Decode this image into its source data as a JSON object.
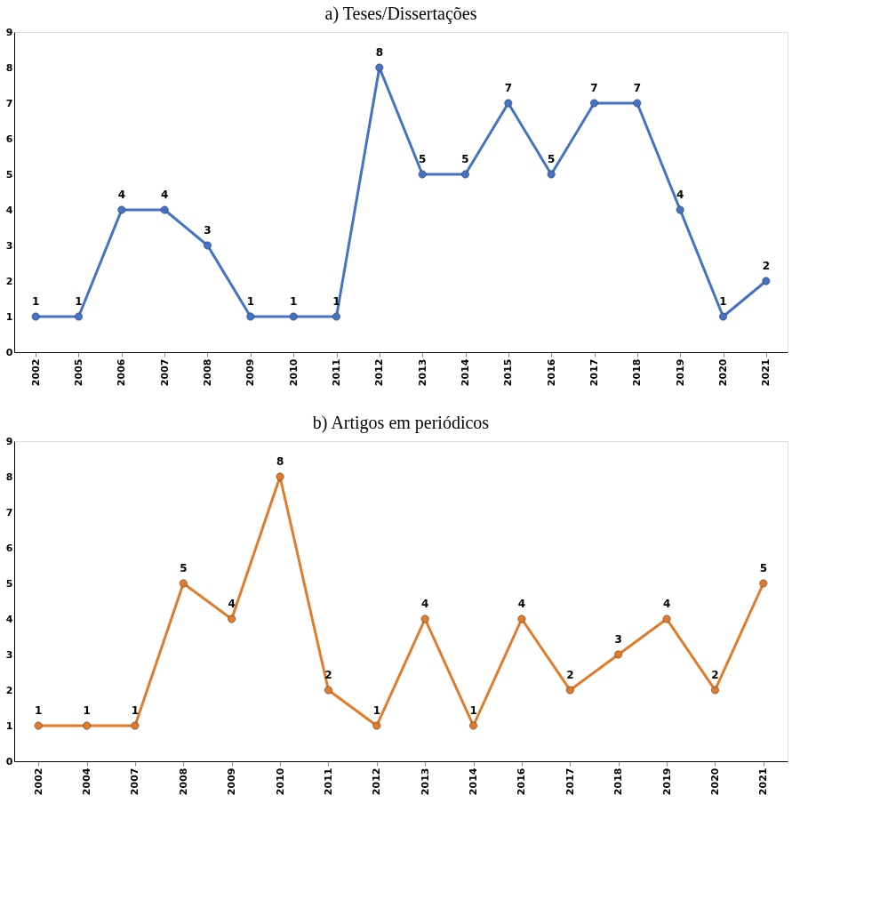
{
  "chart_data": [
    {
      "type": "line",
      "title": "a)   Teses/Dissertações",
      "categories": [
        "2002",
        "2005",
        "2006",
        "2007",
        "2008",
        "2009",
        "2010",
        "2011",
        "2012",
        "2013",
        "2014",
        "2015",
        "2016",
        "2017",
        "2018",
        "2019",
        "2020",
        "2021"
      ],
      "series": [
        {
          "color": "#4472c4",
          "values": [
            1,
            1,
            4,
            4,
            3,
            1,
            1,
            1,
            8,
            5,
            5,
            7,
            5,
            7,
            7,
            4,
            1,
            2
          ]
        }
      ],
      "ylim": [
        0,
        9
      ],
      "yticks": [
        0,
        1,
        2,
        3,
        4,
        5,
        6,
        7,
        8,
        9
      ],
      "data_labels": true,
      "marker": "circle",
      "line_style": "solid"
    },
    {
      "type": "line",
      "title": "b)   Artigos em periódicos",
      "categories": [
        "2002",
        "2004",
        "2007",
        "2008",
        "2009",
        "2010",
        "2011",
        "2012",
        "2013",
        "2014",
        "2016",
        "2017",
        "2018",
        "2019",
        "2020",
        "2021"
      ],
      "series": [
        {
          "color": "#e07b2a",
          "values": [
            1,
            1,
            1,
            5,
            4,
            8,
            2,
            1,
            4,
            1,
            4,
            2,
            3,
            4,
            2,
            5
          ]
        }
      ],
      "ylim": [
        0,
        9
      ],
      "yticks": [
        0,
        1,
        2,
        3,
        4,
        5,
        6,
        7,
        8,
        9
      ],
      "data_labels": true,
      "marker": "circle",
      "line_style": "solid"
    }
  ]
}
